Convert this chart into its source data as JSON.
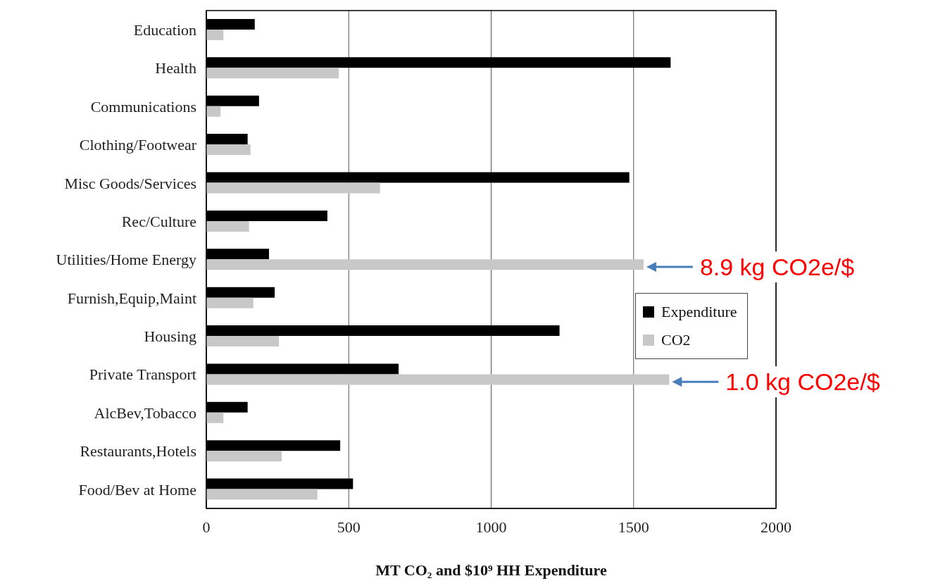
{
  "chart_data": {
    "type": "bar",
    "orientation": "horizontal",
    "xlabel": "MT CO₂ and $10⁹ HH Expenditure",
    "categories": [
      "Education",
      "Health",
      "Communications",
      "Clothing/Footwear",
      "Misc Goods/Services",
      "Rec/Culture",
      "Utilities/Home Energy",
      "Furnish,Equip,Maint",
      "Housing",
      "Private Transport",
      "AlcBev,Tobacco",
      "Restaurants,Hotels",
      "Food/Bev at Home"
    ],
    "series": [
      {
        "name": "Expenditure",
        "color": "#000000",
        "values": [
          170,
          1630,
          185,
          145,
          1485,
          425,
          220,
          240,
          1240,
          675,
          145,
          470,
          515
        ]
      },
      {
        "name": "CO2",
        "color": "#c8c8c8",
        "values": [
          60,
          465,
          50,
          155,
          610,
          150,
          1535,
          165,
          255,
          1625,
          60,
          265,
          390
        ]
      }
    ],
    "xlim": [
      0,
      2000
    ],
    "xticks": [
      0,
      500,
      1000,
      1500,
      2000
    ],
    "grid": "x",
    "legend": "right",
    "annotations": [
      {
        "text": "8.9 kg CO2e/$",
        "x": 1535,
        "y": "Utilities/Home Energy"
      },
      {
        "text": "1.0 kg CO2e/$",
        "x": 1625,
        "y": "Private Transport"
      }
    ]
  }
}
